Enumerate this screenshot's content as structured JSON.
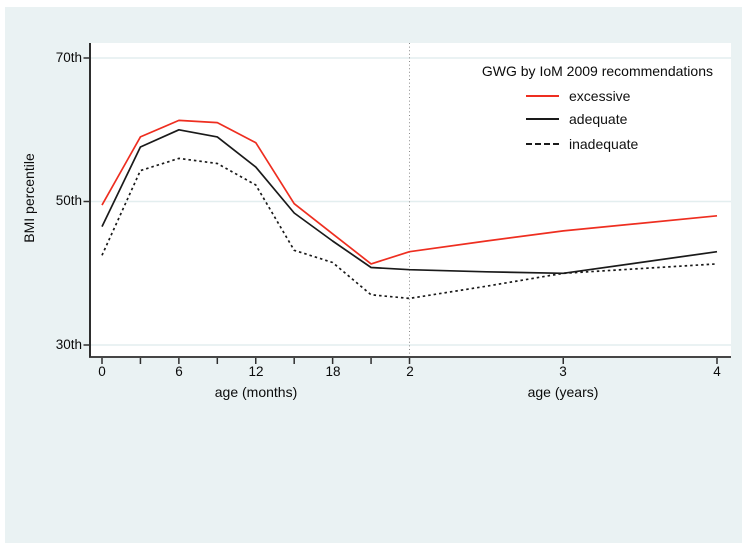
{
  "figure": {
    "background_color": "#eaf2f3",
    "plot_background": "#ffffff",
    "grid_color": "#e3eeef",
    "axis_color": "#2e2e2e",
    "reference_line_color": "#8a8a8a",
    "series_red": "#ee2e20",
    "series_black": "#1a1a1a"
  },
  "chart_data": {
    "type": "line",
    "ylabel": "BMI percentile",
    "xlabel_months": "age (months)",
    "xlabel_years": "age (years)",
    "ylim": [
      28.5,
      72
    ],
    "xlim_months": [
      -1,
      49.2
    ],
    "grid": "horizontal-only",
    "y_ticks": [
      {
        "value": 70,
        "label": "70th"
      },
      {
        "value": 50,
        "label": "50th"
      },
      {
        "value": 30,
        "label": "30th"
      }
    ],
    "x_ticks": [
      {
        "months": 0,
        "label": "0"
      },
      {
        "months": 6,
        "label": "6"
      },
      {
        "months": 12,
        "label": "12"
      },
      {
        "months": 18,
        "label": "18"
      },
      {
        "months": 24,
        "label": "2"
      },
      {
        "months": 36,
        "label": "3"
      },
      {
        "months": 48,
        "label": "4"
      }
    ],
    "x_minor_ticks": [
      3,
      9,
      15,
      21
    ],
    "reference_line_x_months": 24,
    "legend": {
      "position": "top-right-inside",
      "title": "GWG by IoM 2009 recommendations",
      "entries": [
        {
          "label": "excessive",
          "color": "#ee2e20",
          "dash": "solid"
        },
        {
          "label": "adequate",
          "color": "#1a1a1a",
          "dash": "solid"
        },
        {
          "label": "inadequate",
          "color": "#1a1a1a",
          "dash": "dashed"
        }
      ]
    },
    "x_months": [
      0,
      3,
      6,
      9,
      12,
      15,
      18,
      21,
      24,
      30,
      36,
      48
    ],
    "series": [
      {
        "name": "excessive",
        "color": "#ee2e20",
        "dash": "solid",
        "values": [
          49.5,
          59.0,
          61.3,
          61.0,
          58.2,
          49.7,
          45.5,
          41.3,
          43.0,
          44.5,
          45.9,
          48.0
        ]
      },
      {
        "name": "adequate",
        "color": "#1a1a1a",
        "dash": "solid",
        "values": [
          46.5,
          57.6,
          60.0,
          59.0,
          54.8,
          48.4,
          44.5,
          40.8,
          40.5,
          40.2,
          40.0,
          43.0
        ]
      },
      {
        "name": "inadequate",
        "color": "#1a1a1a",
        "dash": "dashed",
        "values": [
          42.5,
          54.3,
          56.0,
          55.3,
          52.3,
          43.2,
          41.5,
          37.0,
          36.5,
          38.2,
          40.0,
          41.3
        ]
      }
    ]
  }
}
